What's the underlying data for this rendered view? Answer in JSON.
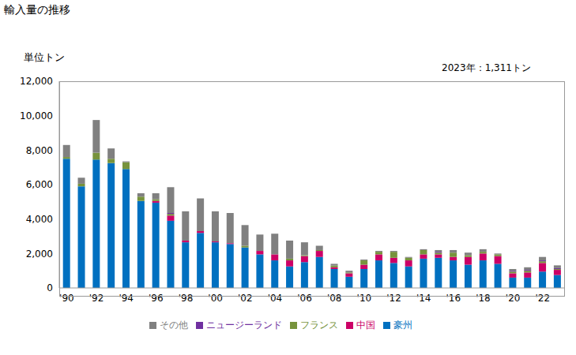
{
  "chart_data": {
    "type": "bar",
    "title": "輸入量の推移",
    "ylabel": "単位トン",
    "annotation": "2023年：1,311トン",
    "stacked": true,
    "grid": false,
    "legend": "bottom",
    "categories": [
      "'90",
      null,
      "'92",
      null,
      "'94",
      null,
      "'96",
      null,
      "'98",
      null,
      "'00",
      null,
      "'02",
      null,
      "'04",
      null,
      "'06",
      null,
      "'08",
      null,
      "'10",
      null,
      "'12",
      null,
      "'14",
      null,
      "'16",
      null,
      "'18",
      null,
      "'20",
      null,
      "'22",
      null
    ],
    "ylim": [
      0,
      12000
    ],
    "yticks": [
      0,
      {
        "value": 2000,
        "label": "2,000"
      },
      {
        "value": 4000,
        "label": "4,000"
      },
      {
        "value": 6000,
        "label": "6,000"
      },
      {
        "value": 8000,
        "label": "8,000"
      },
      {
        "value": 10000,
        "label": "10,000"
      },
      {
        "value": 12000,
        "label": "12,000"
      }
    ],
    "series": [
      {
        "name": "豪州",
        "color": "#0070c0",
        "values": [
          7500,
          5900,
          7450,
          7250,
          6900,
          5050,
          4950,
          3900,
          2650,
          3200,
          2650,
          2550,
          2350,
          1950,
          1600,
          1250,
          1500,
          1800,
          1100,
          650,
          1100,
          1600,
          1450,
          1250,
          1700,
          1750,
          1600,
          1350,
          1600,
          1400,
          600,
          600,
          950,
          750
        ]
      },
      {
        "name": "中国",
        "color": "#cc0066",
        "values": [
          0,
          0,
          0,
          0,
          0,
          0,
          100,
          300,
          100,
          100,
          50,
          50,
          0,
          200,
          350,
          350,
          350,
          350,
          100,
          200,
          250,
          350,
          300,
          350,
          250,
          200,
          200,
          450,
          400,
          450,
          250,
          300,
          500,
          300
        ]
      },
      {
        "name": "フランス",
        "color": "#77933c",
        "values": [
          100,
          150,
          400,
          250,
          400,
          250,
          100,
          100,
          0,
          0,
          0,
          0,
          100,
          0,
          0,
          100,
          50,
          50,
          100,
          50,
          250,
          150,
          350,
          150,
          250,
          100,
          250,
          100,
          100,
          100,
          100,
          100,
          100,
          50
        ]
      },
      {
        "name": "ニュージーランド",
        "color": "#7030a0",
        "values": [
          0,
          0,
          0,
          0,
          0,
          0,
          0,
          50,
          0,
          0,
          0,
          0,
          0,
          0,
          0,
          0,
          0,
          0,
          0,
          0,
          0,
          0,
          0,
          0,
          0,
          50,
          0,
          0,
          0,
          0,
          50,
          50,
          50,
          50
        ]
      },
      {
        "name": "その他",
        "color": "#808080",
        "values": [
          700,
          350,
          1900,
          600,
          50,
          200,
          350,
          1500,
          1700,
          1900,
          1750,
          1750,
          1200,
          950,
          1200,
          1050,
          750,
          250,
          100,
          100,
          50,
          50,
          50,
          50,
          50,
          100,
          150,
          150,
          150,
          50,
          100,
          150,
          200,
          161
        ]
      }
    ]
  }
}
